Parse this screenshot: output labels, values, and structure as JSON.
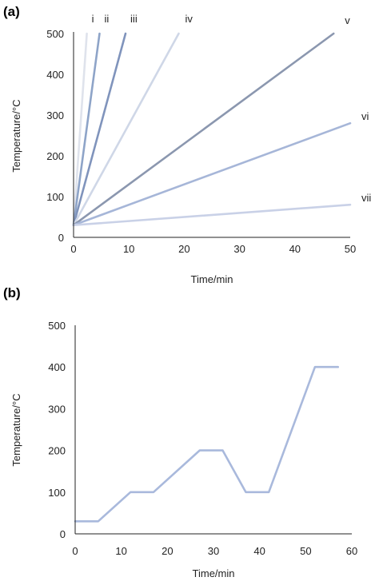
{
  "chart_data": [
    {
      "panel_label": "(a)",
      "type": "line",
      "xlabel": "Time/min",
      "ylabel": "Temperature/°C",
      "xlim": [
        0,
        50
      ],
      "ylim": [
        0,
        500
      ],
      "xticks": [
        "0",
        "10",
        "20",
        "30",
        "40",
        "50"
      ],
      "yticks": [
        "0",
        "100",
        "200",
        "300",
        "400",
        "500"
      ],
      "grid": false,
      "series": [
        {
          "name": "i",
          "color": "#dfe3ec",
          "x": [
            0,
            2.4
          ],
          "y": [
            30,
            500
          ]
        },
        {
          "name": "ii",
          "color": "#8ea4c8",
          "x": [
            0,
            4.7
          ],
          "y": [
            30,
            500
          ]
        },
        {
          "name": "iii",
          "color": "#8094bc",
          "x": [
            0,
            9.4
          ],
          "y": [
            30,
            500
          ]
        },
        {
          "name": "iv",
          "color": "#cfd7e7",
          "x": [
            0,
            19
          ],
          "y": [
            30,
            500
          ]
        },
        {
          "name": "v",
          "color": "#8b97af",
          "x": [
            0,
            47
          ],
          "y": [
            30,
            500
          ]
        },
        {
          "name": "vi",
          "color": "#a6b6d8",
          "x": [
            0,
            50
          ],
          "y": [
            30,
            280
          ]
        },
        {
          "name": "vii",
          "color": "#c9d1e7",
          "x": [
            0,
            50
          ],
          "y": [
            30,
            80
          ]
        }
      ]
    },
    {
      "panel_label": "(b)",
      "type": "line",
      "xlabel": "Time/min",
      "ylabel": "Temperature/°C",
      "xlim": [
        0,
        60
      ],
      "ylim": [
        0,
        500
      ],
      "xticks": [
        "0",
        "10",
        "20",
        "30",
        "40",
        "50",
        "60"
      ],
      "yticks": [
        "0",
        "100",
        "200",
        "300",
        "400",
        "500"
      ],
      "grid": false,
      "series": [
        {
          "color": "#a9b9dc",
          "x": [
            0,
            5,
            12,
            17,
            27,
            32,
            37,
            42,
            52,
            57
          ],
          "y": [
            30,
            30,
            100,
            100,
            200,
            200,
            100,
            100,
            400,
            400
          ]
        }
      ]
    }
  ]
}
